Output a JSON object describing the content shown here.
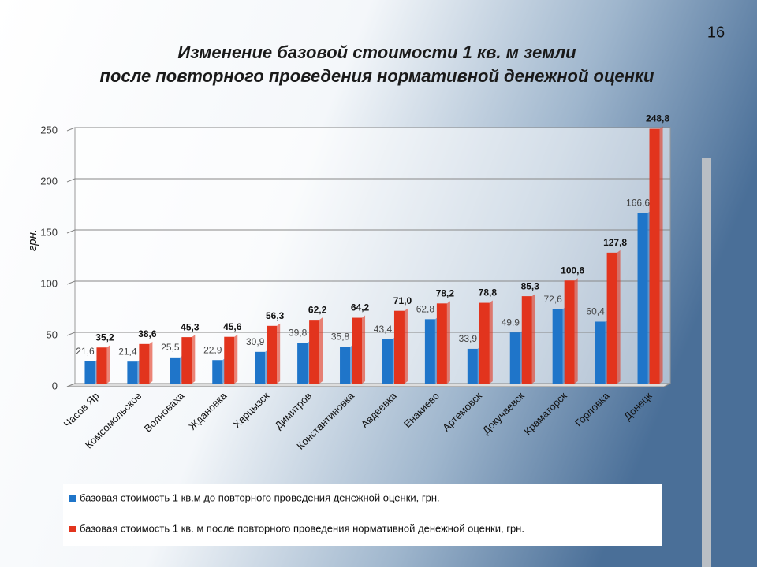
{
  "slide_number": "16",
  "chart_data": {
    "type": "bar",
    "title": "Изменение базовой стоимости 1 кв. м земли",
    "subtitle": "после повторного проведения нормативной денежной оценки",
    "y_label": "грн.",
    "categories": [
      "Часов Яр",
      "Комсомольское",
      "Волноваха",
      "Жданoвка",
      "Харцызск",
      "Димитров",
      "Константиновка",
      "Авдеевка",
      "Енакиево",
      "Артемовск",
      "Докучаевск",
      "Краматорск",
      "Горловка",
      "Донецк"
    ],
    "series": [
      {
        "name": "базовая стоимость 1 кв.м до повторного проведения денежной оценки, грн.",
        "color": "#1f75c9",
        "values": [
          21.6,
          21.4,
          25.5,
          22.9,
          30.9,
          39.8,
          35.8,
          43.4,
          62.8,
          33.9,
          49.9,
          72.6,
          60.4,
          166.6
        ],
        "value_labels": [
          "21,6",
          "21,4",
          "25,5",
          "22,9",
          "30,9",
          "39,8",
          "35,8",
          "43,4",
          "62,8",
          "33,9",
          "49,9",
          "72,6",
          "60,4",
          "166,6"
        ]
      },
      {
        "name": "базовая стоимость 1 кв. м после повторного проведения нормативной денежной оценки, грн.",
        "color": "#e2341d",
        "values": [
          35.2,
          38.6,
          45.3,
          45.6,
          56.3,
          62.2,
          64.2,
          71.0,
          78.2,
          78.8,
          85.3,
          100.6,
          127.8,
          248.8
        ],
        "value_labels": [
          "35,2",
          "38,6",
          "45,3",
          "45,6",
          "56,3",
          "62,2",
          "64,2",
          "71,0",
          "78,2",
          "78,8",
          "85,3",
          "100,6",
          "127,8",
          "248,8"
        ]
      }
    ],
    "ylim": [
      0,
      250
    ],
    "yticks": [
      0,
      50,
      100,
      150,
      200,
      250
    ],
    "grid": true
  }
}
